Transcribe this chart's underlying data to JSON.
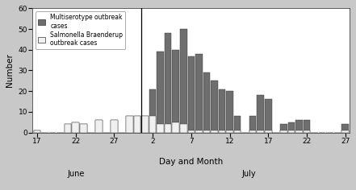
{
  "xlabel": "Day and Month",
  "ylabel": "Number",
  "ylim": [
    0,
    60
  ],
  "yticks": [
    0,
    10,
    20,
    30,
    40,
    50,
    60
  ],
  "ytick_labels": [
    "0",
    "10",
    "20",
    "30",
    "40",
    "50",
    "60"
  ],
  "june_label": "June",
  "july_label": "July",
  "bar_color_multi": "#6e6e6e",
  "bar_color_braenderup": "#f0f0f0",
  "bar_edgecolor": "#333333",
  "legend_labels": [
    "Multiserotype outbreak\ncases",
    "Salmonella Braenderup\noutbreak cases"
  ],
  "fig_bg": "#c8c8c8",
  "plot_bg": "#ffffff",
  "multi_values": [
    1,
    0,
    0,
    0,
    4,
    5,
    4,
    0,
    6,
    0,
    6,
    0,
    8,
    8,
    8,
    21,
    39,
    48,
    40,
    50,
    37,
    38,
    29,
    25,
    21,
    20,
    8,
    0,
    8,
    18,
    16,
    0,
    4,
    5,
    6,
    6,
    0,
    0,
    0,
    0,
    4
  ],
  "braenderup_values": [
    1,
    0,
    0,
    0,
    4,
    5,
    4,
    0,
    6,
    0,
    6,
    0,
    8,
    8,
    8,
    8,
    4,
    4,
    5,
    4,
    1,
    1,
    1,
    1,
    1,
    1,
    1,
    0,
    1,
    1,
    1,
    0,
    1,
    1,
    1,
    1,
    0,
    0,
    0,
    0,
    1
  ],
  "n_june": 14,
  "n_total": 41,
  "june_tick_indices": [
    0,
    5,
    10
  ],
  "june_tick_labels": [
    "17",
    "22",
    "27"
  ],
  "july_tick_indices": [
    15,
    20,
    25,
    30,
    35,
    40
  ],
  "july_tick_labels": [
    "2",
    "7",
    "12",
    "17",
    "22",
    "27"
  ]
}
